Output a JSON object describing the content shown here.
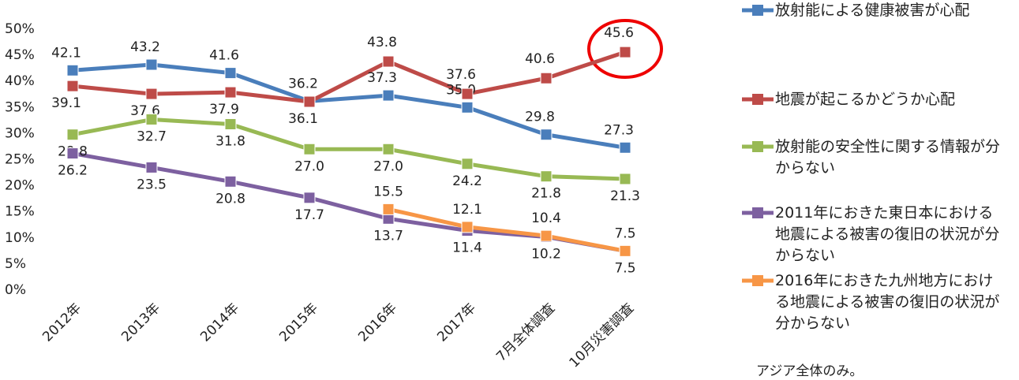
{
  "chart_data": {
    "type": "line",
    "categories": [
      "2012年",
      "2013年",
      "2014年",
      "2015年",
      "2016年",
      "2017年",
      "7月全体調査",
      "10月災害調査"
    ],
    "series": [
      {
        "name": "放射能による健康被害が心配",
        "color": "#4a7ebb",
        "values": [
          42.1,
          43.2,
          41.6,
          36.2,
          37.3,
          35.0,
          29.8,
          27.3
        ],
        "value_labels": [
          "42.1",
          "43.2",
          "41.6",
          "36.2",
          "37.3",
          "35.0",
          "29.8",
          "27.3"
        ]
      },
      {
        "name": "地震が起こるかどうか心配",
        "color": "#be4b48",
        "values": [
          39.1,
          37.6,
          37.9,
          36.1,
          43.8,
          37.6,
          40.6,
          45.6
        ],
        "value_labels": [
          "39.1",
          "37.6",
          "37.9",
          "36.1",
          "43.8",
          "37.6",
          "40.6",
          "45.6"
        ]
      },
      {
        "name": "放射能の安全性に関する情報が分からない",
        "color": "#98b954",
        "values": [
          29.8,
          32.7,
          31.8,
          27.0,
          27.0,
          24.2,
          21.8,
          21.3
        ],
        "value_labels": [
          "29.8",
          "32.7",
          "31.8",
          "27.0",
          "27.0",
          "24.2",
          "21.8",
          "21.3"
        ]
      },
      {
        "name": "2011年におきた東日本における地震による被害の復旧の状況が分からない",
        "color": "#7d60a0",
        "values": [
          26.2,
          23.5,
          20.8,
          17.7,
          13.7,
          11.4,
          10.2,
          7.5
        ],
        "value_labels": [
          "26.2",
          "23.5",
          "20.8",
          "17.7",
          "13.7",
          "11.4",
          "10.2",
          "7.5"
        ]
      },
      {
        "name": "2016年におきた九州地方における地震による被害の復旧の状況が分からない",
        "color": "#f79646",
        "values": [
          null,
          null,
          null,
          null,
          15.5,
          12.1,
          10.4,
          7.5
        ],
        "value_labels": [
          null,
          null,
          null,
          null,
          "15.5",
          "12.1",
          "10.4",
          "7.5"
        ]
      }
    ],
    "ylim": [
      0,
      50
    ],
    "yticks": [
      {
        "value": 0,
        "label": "0%"
      },
      {
        "value": 5,
        "label": "5%"
      },
      {
        "value": 10,
        "label": "10%"
      },
      {
        "value": 15,
        "label": "15%"
      },
      {
        "value": 20,
        "label": "20%"
      },
      {
        "value": 25,
        "label": "25%"
      },
      {
        "value": 30,
        "label": "30%"
      },
      {
        "value": 35,
        "label": "35%"
      },
      {
        "value": 40,
        "label": "40%"
      },
      {
        "value": 45,
        "label": "45%"
      },
      {
        "value": 50,
        "label": "50%"
      }
    ],
    "grid": false,
    "legend": "right",
    "annotation": "アジア全体のみ。"
  }
}
